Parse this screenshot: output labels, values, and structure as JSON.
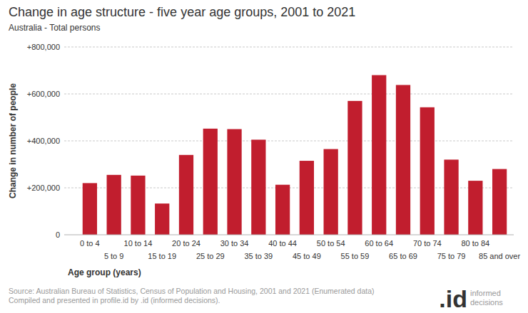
{
  "chart_data": {
    "type": "bar",
    "title": "Change in age structure - five year age groups, 2001 to 2021",
    "subtitle": "Australia - Total persons",
    "x_label": "Age group (years)",
    "y_label": "Change in number of people",
    "categories": [
      "0 to 4",
      "5 to 9",
      "10 to 14",
      "15 to 19",
      "20 to 24",
      "25 to 29",
      "30 to 34",
      "35 to 39",
      "40 to 44",
      "45 to 49",
      "50 to 54",
      "55 to 59",
      "60 to 64",
      "65 to 69",
      "70 to 74",
      "75 to 79",
      "80 to 84",
      "85 and over"
    ],
    "values": [
      220000,
      255000,
      252000,
      133000,
      340000,
      452000,
      450000,
      405000,
      213000,
      315000,
      365000,
      570000,
      680000,
      638000,
      543000,
      320000,
      230000,
      280000
    ],
    "color": "#c11e2e",
    "ylim": [
      0,
      800000
    ],
    "yticks": [
      0,
      {
        "value": 200000,
        "label": "+200,000"
      },
      {
        "value": 400000,
        "label": "+400,000"
      },
      {
        "value": 600000,
        "label": "+600,000"
      },
      {
        "value": 800000,
        "label": "+800,000"
      }
    ],
    "grid": true,
    "source": [
      "Source: Australian Bureau of Statistics, Census of Population and Housing, 2001 and 2021 (Enumerated data)",
      "Compiled and presented in profile.id by .id (informed decisions)."
    ],
    "logo": [
      ".id",
      "informed",
      "decisions"
    ]
  }
}
